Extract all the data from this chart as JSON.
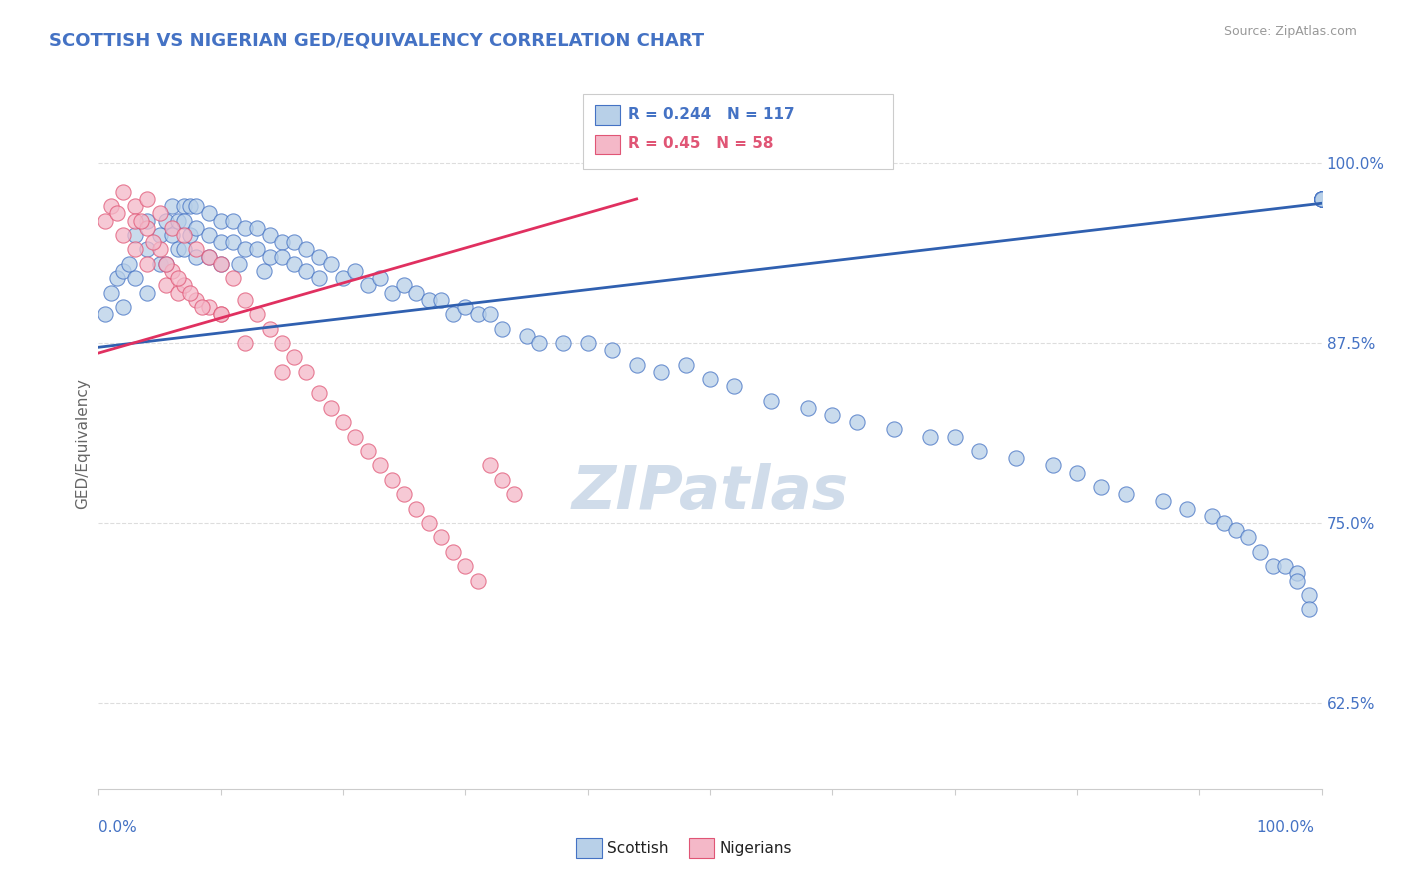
{
  "title": "SCOTTISH VS NIGERIAN GED/EQUIVALENCY CORRELATION CHART",
  "source": "Source: ZipAtlas.com",
  "ylabel": "GED/Equivalency",
  "ytick_labels": [
    "62.5%",
    "75.0%",
    "87.5%",
    "100.0%"
  ],
  "ytick_values": [
    0.625,
    0.75,
    0.875,
    1.0
  ],
  "xmin": 0.0,
  "xmax": 1.0,
  "ymin": 0.565,
  "ymax": 1.045,
  "legend_label_blue": "Scottish",
  "legend_label_pink": "Nigerians",
  "r_blue": 0.244,
  "n_blue": 117,
  "r_pink": 0.45,
  "n_pink": 58,
  "color_blue_fill": "#b8d0e8",
  "color_blue_edge": "#4472c4",
  "color_pink_fill": "#f4b8c8",
  "color_pink_edge": "#e05575",
  "color_blue_line": "#3060b0",
  "color_pink_line": "#e03060",
  "color_title": "#4472c4",
  "color_ylabel": "#666666",
  "color_ytick": "#4472c4",
  "color_xtick": "#4472c4",
  "color_source": "#999999",
  "color_grid": "#dddddd",
  "watermark_text": "ZIPatlas",
  "watermark_color": "#d0dcea",
  "background_color": "#ffffff",
  "blue_trend_x": [
    0.0,
    1.0
  ],
  "blue_trend_y": [
    0.872,
    0.972
  ],
  "pink_trend_x": [
    0.0,
    0.44
  ],
  "pink_trend_y": [
    0.868,
    0.975
  ],
  "blue_x": [
    0.005,
    0.01,
    0.015,
    0.02,
    0.02,
    0.025,
    0.03,
    0.03,
    0.04,
    0.04,
    0.04,
    0.05,
    0.05,
    0.055,
    0.055,
    0.06,
    0.06,
    0.065,
    0.065,
    0.07,
    0.07,
    0.07,
    0.075,
    0.075,
    0.08,
    0.08,
    0.08,
    0.09,
    0.09,
    0.09,
    0.1,
    0.1,
    0.1,
    0.11,
    0.11,
    0.115,
    0.12,
    0.12,
    0.13,
    0.13,
    0.135,
    0.14,
    0.14,
    0.15,
    0.15,
    0.16,
    0.16,
    0.17,
    0.17,
    0.18,
    0.18,
    0.19,
    0.2,
    0.21,
    0.22,
    0.23,
    0.24,
    0.25,
    0.26,
    0.27,
    0.28,
    0.29,
    0.3,
    0.31,
    0.32,
    0.33,
    0.35,
    0.36,
    0.38,
    0.4,
    0.42,
    0.44,
    0.46,
    0.48,
    0.5,
    0.52,
    0.55,
    0.58,
    0.6,
    0.62,
    0.65,
    0.68,
    0.7,
    0.72,
    0.75,
    0.78,
    0.8,
    0.82,
    0.84,
    0.87,
    0.89,
    0.91,
    0.92,
    0.93,
    0.94,
    0.95,
    0.96,
    0.97,
    0.98,
    0.98,
    0.99,
    0.99,
    1.0,
    1.0,
    1.0,
    1.0,
    1.0,
    1.0,
    1.0,
    1.0,
    1.0,
    1.0,
    1.0,
    1.0,
    1.0,
    1.0,
    1.0
  ],
  "blue_y": [
    0.895,
    0.91,
    0.92,
    0.925,
    0.9,
    0.93,
    0.95,
    0.92,
    0.96,
    0.94,
    0.91,
    0.95,
    0.93,
    0.96,
    0.93,
    0.97,
    0.95,
    0.96,
    0.94,
    0.97,
    0.96,
    0.94,
    0.97,
    0.95,
    0.97,
    0.955,
    0.935,
    0.965,
    0.95,
    0.935,
    0.96,
    0.945,
    0.93,
    0.96,
    0.945,
    0.93,
    0.955,
    0.94,
    0.955,
    0.94,
    0.925,
    0.95,
    0.935,
    0.945,
    0.935,
    0.945,
    0.93,
    0.94,
    0.925,
    0.935,
    0.92,
    0.93,
    0.92,
    0.925,
    0.915,
    0.92,
    0.91,
    0.915,
    0.91,
    0.905,
    0.905,
    0.895,
    0.9,
    0.895,
    0.895,
    0.885,
    0.88,
    0.875,
    0.875,
    0.875,
    0.87,
    0.86,
    0.855,
    0.86,
    0.85,
    0.845,
    0.835,
    0.83,
    0.825,
    0.82,
    0.815,
    0.81,
    0.81,
    0.8,
    0.795,
    0.79,
    0.785,
    0.775,
    0.77,
    0.765,
    0.76,
    0.755,
    0.75,
    0.745,
    0.74,
    0.73,
    0.72,
    0.72,
    0.715,
    0.71,
    0.7,
    0.69,
    0.975,
    0.975,
    0.975,
    0.975,
    0.975,
    0.975,
    0.975,
    0.975,
    0.975,
    0.975,
    0.975,
    0.975,
    0.975,
    0.975,
    0.975
  ],
  "pink_x": [
    0.005,
    0.01,
    0.015,
    0.02,
    0.02,
    0.03,
    0.03,
    0.03,
    0.04,
    0.04,
    0.04,
    0.05,
    0.05,
    0.055,
    0.06,
    0.06,
    0.065,
    0.07,
    0.07,
    0.08,
    0.08,
    0.09,
    0.09,
    0.1,
    0.1,
    0.11,
    0.12,
    0.13,
    0.14,
    0.15,
    0.16,
    0.17,
    0.18,
    0.19,
    0.2,
    0.21,
    0.22,
    0.23,
    0.24,
    0.25,
    0.26,
    0.27,
    0.28,
    0.29,
    0.3,
    0.31,
    0.32,
    0.33,
    0.34,
    0.035,
    0.045,
    0.055,
    0.065,
    0.075,
    0.085,
    0.1,
    0.12,
    0.15
  ],
  "pink_y": [
    0.96,
    0.97,
    0.965,
    0.98,
    0.95,
    0.97,
    0.96,
    0.94,
    0.975,
    0.955,
    0.93,
    0.965,
    0.94,
    0.915,
    0.955,
    0.925,
    0.91,
    0.95,
    0.915,
    0.94,
    0.905,
    0.935,
    0.9,
    0.93,
    0.895,
    0.92,
    0.905,
    0.895,
    0.885,
    0.875,
    0.865,
    0.855,
    0.84,
    0.83,
    0.82,
    0.81,
    0.8,
    0.79,
    0.78,
    0.77,
    0.76,
    0.75,
    0.74,
    0.73,
    0.72,
    0.71,
    0.79,
    0.78,
    0.77,
    0.96,
    0.945,
    0.93,
    0.92,
    0.91,
    0.9,
    0.895,
    0.875,
    0.855
  ]
}
